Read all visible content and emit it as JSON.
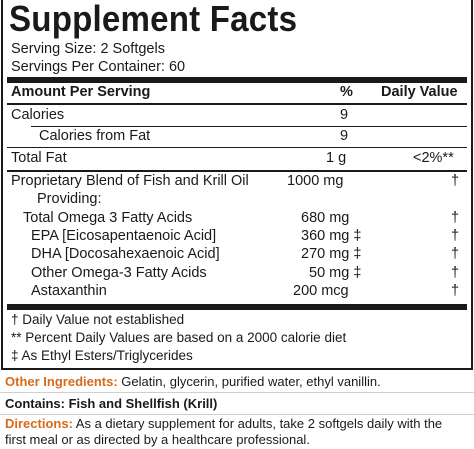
{
  "title": "Supplement Facts",
  "serving_size": "Serving Size: 2 Softgels",
  "servings_per_container": "Servings Per Container: 60",
  "header": {
    "amount": "Amount Per Serving",
    "pct": "%",
    "dv": "Daily Value"
  },
  "rows": [
    {
      "name": "Calories",
      "amount": "9",
      "dv": ""
    },
    {
      "name": "Calories from Fat",
      "amount": "9",
      "dv": ""
    },
    {
      "name": "Total Fat",
      "amount": "1 g",
      "dv": "<2%**"
    },
    {
      "name": "Proprietary Blend of Fish and Krill Oil",
      "amount": "1000 mg",
      "dv": "†"
    },
    {
      "name": "Providing:",
      "amount": "",
      "dv": ""
    },
    {
      "name": "Total Omega 3 Fatty Acids",
      "amount": "680 mg",
      "dv": "†"
    },
    {
      "name": "EPA [Eicosapentaenoic Acid]",
      "amount": "360 mg ‡",
      "dv": "†"
    },
    {
      "name": "DHA [Docosahexaenoic Acid]",
      "amount": "270 mg ‡",
      "dv": "†"
    },
    {
      "name": "Other Omega-3 Fatty Acids",
      "amount": "50 mg ‡",
      "dv": "†"
    },
    {
      "name": "Astaxanthin",
      "amount": "200 mcg",
      "dv": "†"
    }
  ],
  "footnotes": [
    "† Daily Value not established",
    "** Percent Daily Values are based on a 2000 calorie diet",
    "‡ As Ethyl Esters/Triglycerides"
  ],
  "other_ingredients": {
    "label": "Other Ingredients:",
    "text": " Gelatin, glycerin, purified water, ethyl vanillin."
  },
  "contains": {
    "label": "Contains:",
    "text": " Fish and Shellfish (Krill)"
  },
  "directions": {
    "label": "Directions:",
    "line1": " As a dietary supplement for adults, take 2 softgels daily with the",
    "line2": "first meal or as directed by a healthcare professional."
  },
  "colors": {
    "accent": "#d96a1c",
    "text": "#1a1a1a"
  }
}
